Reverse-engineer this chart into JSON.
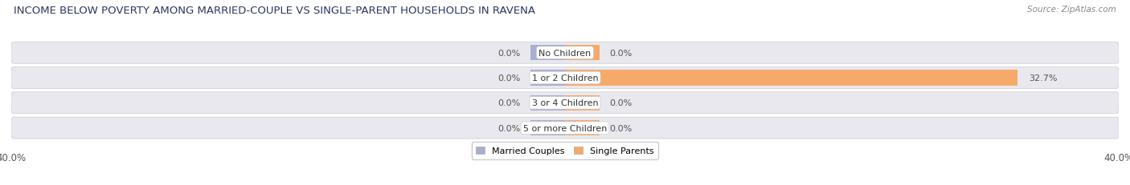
{
  "title": "INCOME BELOW POVERTY AMONG MARRIED-COUPLE VS SINGLE-PARENT HOUSEHOLDS IN RAVENA",
  "source": "Source: ZipAtlas.com",
  "categories": [
    "No Children",
    "1 or 2 Children",
    "3 or 4 Children",
    "5 or more Children"
  ],
  "married_values": [
    0.0,
    0.0,
    0.0,
    0.0
  ],
  "single_values": [
    0.0,
    32.7,
    0.0,
    0.0
  ],
  "married_color": "#a8aed4",
  "single_color": "#f5aa6a",
  "married_label": "Married Couples",
  "single_label": "Single Parents",
  "xlim": 40.0,
  "bar_height": 0.62,
  "row_bg_color": "#e8e8ee",
  "white_bg": "#ffffff",
  "title_fontsize": 9.5,
  "source_fontsize": 7.5,
  "cat_fontsize": 8,
  "val_fontsize": 8,
  "tick_fontsize": 8.5,
  "legend_fontsize": 8,
  "title_color": "#2d3561",
  "val_color": "#555555",
  "source_color": "#888888"
}
